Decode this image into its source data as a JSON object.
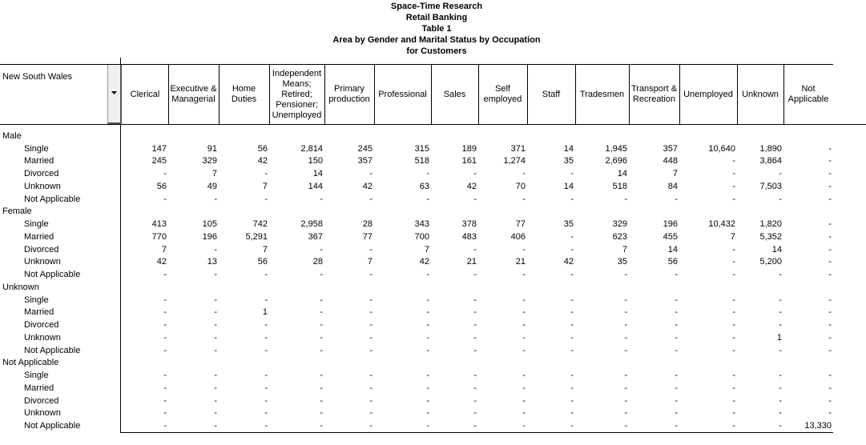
{
  "title_lines": [
    "Space-Time Research",
    "Retail Banking",
    "Table 1",
    "Area by Gender and Marital Status by Occupation",
    "for Customers"
  ],
  "corner": {
    "label": "New South Wales"
  },
  "columns": [
    "Clerical",
    "Executive & Managerial",
    "Home Duties",
    "Independent Means; Retired; Pensioner; Unemployed",
    "Primary production",
    "Professional",
    "Sales",
    "Self employed",
    "Staff",
    "Tradesmen",
    "Transport & Recreation",
    "Unemployed",
    "Unknown",
    "Not Applicable"
  ],
  "groups": [
    {
      "label": "Male",
      "rows": [
        {
          "label": "Single",
          "cells": [
            "147",
            "91",
            "56",
            "2,814",
            "245",
            "315",
            "189",
            "371",
            "14",
            "1,945",
            "357",
            "10,640",
            "1,890",
            "-"
          ]
        },
        {
          "label": "Married",
          "cells": [
            "245",
            "329",
            "42",
            "150",
            "357",
            "518",
            "161",
            "1,274",
            "35",
            "2,696",
            "448",
            "-",
            "3,864",
            "-"
          ]
        },
        {
          "label": "Divorced",
          "cells": [
            "-",
            "7",
            "-",
            "14",
            "-",
            "-",
            "-",
            "-",
            "-",
            "14",
            "7",
            "-",
            "-",
            "-"
          ]
        },
        {
          "label": "Unknown",
          "cells": [
            "56",
            "49",
            "7",
            "144",
            "42",
            "63",
            "42",
            "70",
            "14",
            "518",
            "84",
            "-",
            "7,503",
            "-"
          ]
        },
        {
          "label": "Not Applicable",
          "cells": [
            "-",
            "-",
            "-",
            "-",
            "-",
            "-",
            "-",
            "-",
            "-",
            "-",
            "-",
            "-",
            "-",
            "-"
          ]
        }
      ]
    },
    {
      "label": "Female",
      "rows": [
        {
          "label": "Single",
          "cells": [
            "413",
            "105",
            "742",
            "2,958",
            "28",
            "343",
            "378",
            "77",
            "35",
            "329",
            "196",
            "10,432",
            "1,820",
            "-"
          ]
        },
        {
          "label": "Married",
          "cells": [
            "770",
            "196",
            "5,291",
            "367",
            "77",
            "700",
            "483",
            "406",
            "-",
            "623",
            "455",
            "7",
            "5,352",
            "-"
          ]
        },
        {
          "label": "Divorced",
          "cells": [
            "7",
            "-",
            "7",
            "-",
            "-",
            "7",
            "-",
            "-",
            "-",
            "7",
            "14",
            "-",
            "14",
            "-"
          ]
        },
        {
          "label": "Unknown",
          "cells": [
            "42",
            "13",
            "56",
            "28",
            "7",
            "42",
            "21",
            "21",
            "42",
            "35",
            "56",
            "-",
            "5,200",
            "-"
          ]
        },
        {
          "label": "Not Applicable",
          "cells": [
            "-",
            "-",
            "-",
            "-",
            "-",
            "-",
            "-",
            "-",
            "-",
            "-",
            "-",
            "-",
            "-",
            "-"
          ]
        }
      ]
    },
    {
      "label": "Unknown",
      "rows": [
        {
          "label": "Single",
          "cells": [
            "-",
            "-",
            "-",
            "-",
            "-",
            "-",
            "-",
            "-",
            "-",
            "-",
            "-",
            "-",
            "-",
            "-"
          ]
        },
        {
          "label": "Married",
          "cells": [
            "-",
            "-",
            "1",
            "-",
            "-",
            "-",
            "-",
            "-",
            "-",
            "-",
            "-",
            "-",
            "-",
            "-"
          ]
        },
        {
          "label": "Divorced",
          "cells": [
            "-",
            "-",
            "-",
            "-",
            "-",
            "-",
            "-",
            "-",
            "-",
            "-",
            "-",
            "-",
            "-",
            "-"
          ]
        },
        {
          "label": "Unknown",
          "cells": [
            "-",
            "-",
            "-",
            "-",
            "-",
            "-",
            "-",
            "-",
            "-",
            "-",
            "-",
            "-",
            "1",
            "-"
          ]
        },
        {
          "label": "Not Applicable",
          "cells": [
            "-",
            "-",
            "-",
            "-",
            "-",
            "-",
            "-",
            "-",
            "-",
            "-",
            "-",
            "-",
            "-",
            "-"
          ]
        }
      ]
    },
    {
      "label": "Not Applicable",
      "rows": [
        {
          "label": "Single",
          "cells": [
            "-",
            "-",
            "-",
            "-",
            "-",
            "-",
            "-",
            "-",
            "-",
            "-",
            "-",
            "-",
            "-",
            "-"
          ]
        },
        {
          "label": "Married",
          "cells": [
            "-",
            "-",
            "-",
            "-",
            "-",
            "-",
            "-",
            "-",
            "-",
            "-",
            "-",
            "-",
            "-",
            "-"
          ]
        },
        {
          "label": "Divorced",
          "cells": [
            "-",
            "-",
            "-",
            "-",
            "-",
            "-",
            "-",
            "-",
            "-",
            "-",
            "-",
            "-",
            "-",
            "-"
          ]
        },
        {
          "label": "Unknown",
          "cells": [
            "-",
            "-",
            "-",
            "-",
            "-",
            "-",
            "-",
            "-",
            "-",
            "-",
            "-",
            "-",
            "-",
            "-"
          ]
        },
        {
          "label": "Not Applicable",
          "cells": [
            "-",
            "-",
            "-",
            "-",
            "-",
            "-",
            "-",
            "-",
            "-",
            "-",
            "-",
            "-",
            "-",
            "13,330"
          ]
        }
      ]
    }
  ]
}
